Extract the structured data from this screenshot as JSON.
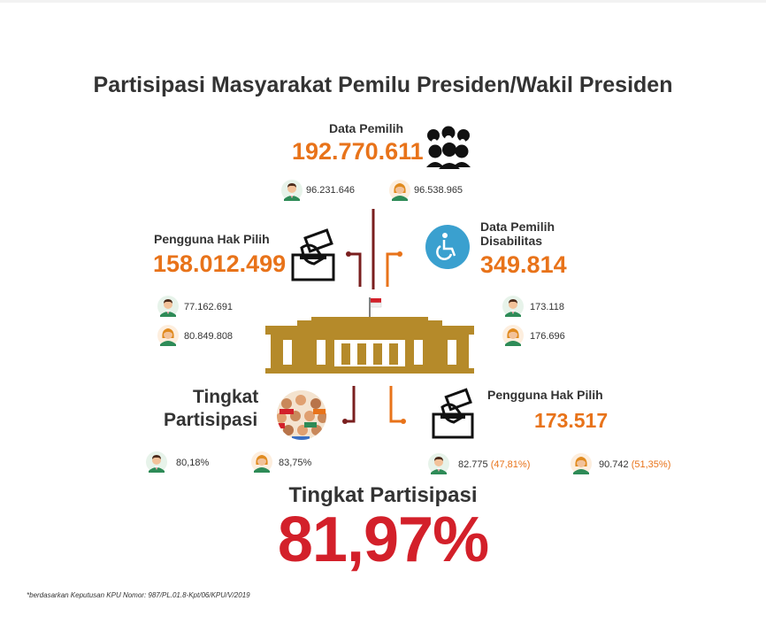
{
  "title": "Partisipasi Masyarakat Pemilu Presiden/Wakil Presiden",
  "voters": {
    "label": "Data Pemilih",
    "total": "192.770.611",
    "male": "96.231.646",
    "female": "96.538.965"
  },
  "users": {
    "label": "Pengguna Hak Pilih",
    "total": "158.012.499",
    "male": "77.162.691",
    "female": "80.849.808"
  },
  "disabled": {
    "label_line1": "Data Pemilih",
    "label_line2": "Disabilitas",
    "total": "349.814",
    "male": "173.118",
    "female": "176.696"
  },
  "participation": {
    "label_line1": "Tingkat",
    "label_line2": "Partisipasi",
    "male": "80,18%",
    "female": "83,75%"
  },
  "disabled_users": {
    "label": "Pengguna Hak Pilih",
    "total": "173.517",
    "male": "82.775",
    "male_pct": "(47,81%)",
    "female": "90.742",
    "female_pct": "(51,35%)"
  },
  "overall": {
    "label": "Tingkat Partisipasi",
    "value": "81,97%"
  },
  "footnote": "*berdasarkan Keputusan KPU Nomor: 987/PL.01.8-Kpt/06/KPU/V/2019",
  "colors": {
    "orange": "#e8731a",
    "red": "#d3202a",
    "gold": "#b58a2a",
    "maroon": "#7a1f1f",
    "teal_bg": "#3aa0cf",
    "male_shirt": "#2e8b57",
    "female_hair": "#e08a1e"
  },
  "icons": [
    "people-group-icon",
    "ballot-box-icon",
    "wheelchair-icon",
    "crowd-icon",
    "building-icon",
    "male-avatar-icon",
    "female-avatar-icon"
  ]
}
